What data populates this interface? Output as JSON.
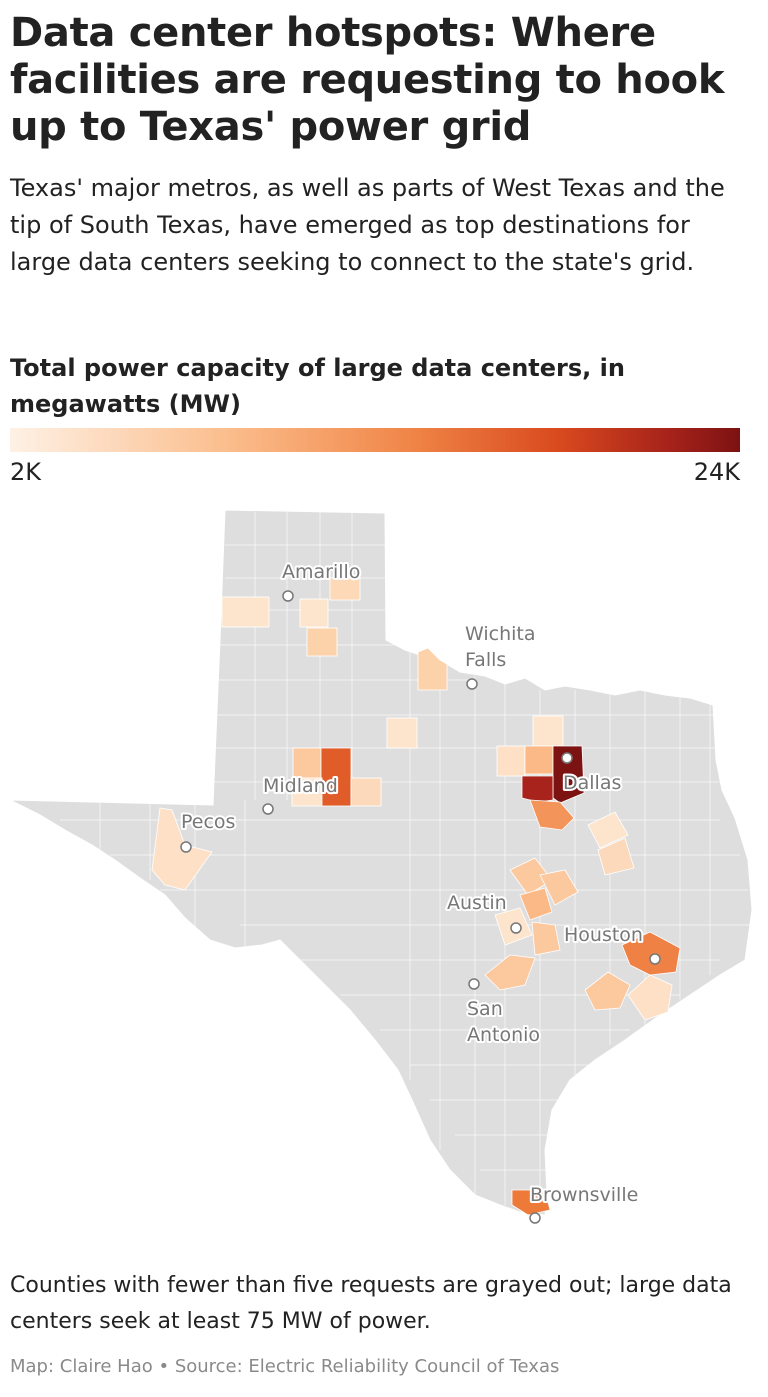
{
  "title": "Data center hotspots: Where facilities are requesting to hook up to Texas' power grid",
  "subtitle": "Texas' major metros, as well as parts of West Texas and the tip of South Texas, have emerged as top destinations for large data centers seeking to connect to the state's grid.",
  "legend": {
    "title": "Total power capacity of large data centers, in megawatts (MW)",
    "min_label": "2K",
    "max_label": "24K",
    "colors": [
      "#fef1e5",
      "#fbbd8c",
      "#f08547",
      "#d94a1e",
      "#a7231b",
      "#7d1212"
    ]
  },
  "map": {
    "base_color": "#dedede",
    "cities": {
      "amarillo": "Amarillo",
      "wichita_falls_1": "Wichita",
      "wichita_falls_2": "Falls",
      "midland": "Midland",
      "pecos": "Pecos",
      "dallas": "Dallas",
      "austin": "Austin",
      "houston": "Houston",
      "san_antonio_1": "San",
      "san_antonio_2": "Antonio",
      "brownsville": "Brownsville"
    }
  },
  "footnote": "Counties with fewer than five requests are grayed out; large data centers seek at least 75 MW of power.",
  "credit": "Map: Claire Hao • Source: Electric Reliability Council of Texas"
}
